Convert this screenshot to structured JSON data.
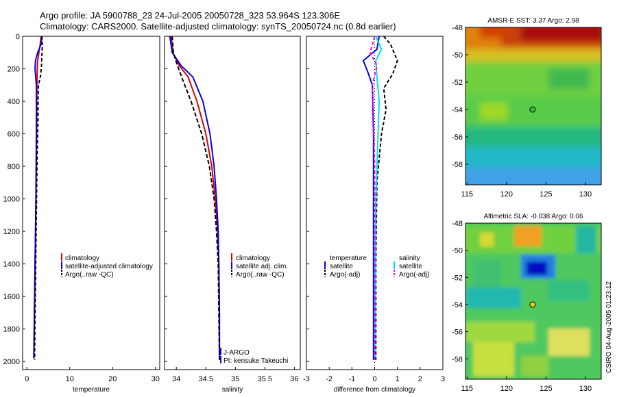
{
  "figure": {
    "title_line1": "Argo profile: JA 5900788_23 24-Jul-2005 20050728_323 53.964S 123.306E",
    "title_line2": "Climatology: CARS2000. Satellite-adjusted climatology: synTS_20050724.nc (0.8d earlier)",
    "side_label": "CSIRO 04-Aug-2005 01:23:12"
  },
  "colors": {
    "clim": "#e00000",
    "sat": "#0000ee",
    "argo": "#000000",
    "salt": "#00e0e0",
    "argo_s": "#ff00ff"
  },
  "chart_data": [
    {
      "type": "line",
      "id": "temperature",
      "xlabel": "temperature",
      "xlim": [
        -1,
        31
      ],
      "ylim": [
        2050,
        0
      ],
      "xticks": [
        0,
        10,
        20,
        30
      ],
      "yticks": [
        0,
        200,
        400,
        600,
        800,
        1000,
        1200,
        1400,
        1600,
        1800,
        2000
      ],
      "series": [
        {
          "name": "climatology",
          "color": "#e00000",
          "dash": "",
          "points": [
            [
              3.3,
              0
            ],
            [
              3.1,
              50
            ],
            [
              2.8,
              100
            ],
            [
              2.5,
              150
            ],
            [
              2.4,
              200
            ],
            [
              2.35,
              300
            ],
            [
              2.3,
              400
            ],
            [
              2.25,
              600
            ],
            [
              2.2,
              800
            ],
            [
              2.1,
              1000
            ],
            [
              2.0,
              1200
            ],
            [
              1.9,
              1400
            ],
            [
              1.8,
              1600
            ],
            [
              1.7,
              1800
            ],
            [
              1.6,
              1980
            ]
          ]
        },
        {
          "name": "satellite-adjusted climatology",
          "color": "#0000ee",
          "dash": "",
          "points": [
            [
              3.5,
              0
            ],
            [
              3.3,
              50
            ],
            [
              2.5,
              100
            ],
            [
              2.0,
              150
            ],
            [
              1.9,
              200
            ],
            [
              2.2,
              300
            ],
            [
              2.2,
              400
            ],
            [
              2.2,
              600
            ],
            [
              2.15,
              800
            ],
            [
              2.1,
              1000
            ],
            [
              2.0,
              1200
            ],
            [
              1.9,
              1400
            ],
            [
              1.8,
              1600
            ],
            [
              1.7,
              1800
            ],
            [
              1.6,
              1980
            ]
          ]
        },
        {
          "name": "Argo(..raw -QC)",
          "color": "#000000",
          "dash": "5,3",
          "points": [
            [
              3.5,
              0
            ],
            [
              3.6,
              60
            ],
            [
              3.5,
              120
            ],
            [
              3.4,
              180
            ],
            [
              3.2,
              240
            ],
            [
              2.7,
              300
            ],
            [
              2.6,
              400
            ],
            [
              2.6,
              500
            ],
            [
              2.4,
              700
            ],
            [
              2.3,
              900
            ],
            [
              2.2,
              1100
            ],
            [
              2.1,
              1300
            ],
            [
              2.0,
              1500
            ],
            [
              1.9,
              1700
            ],
            [
              1.8,
              1990
            ]
          ]
        }
      ],
      "legend": [
        "climatology",
        "satellite-adjusted climatology",
        "Argo(..raw -QC)"
      ]
    },
    {
      "type": "line",
      "id": "salinity",
      "xlabel": "salinity",
      "xlim": [
        33.8,
        36.1
      ],
      "ylim": [
        2050,
        0
      ],
      "xticks": [
        34,
        34.5,
        35,
        35.5,
        36
      ],
      "tick_labels": [
        "34",
        "34.5",
        "35",
        "35.5",
        "36"
      ],
      "series": [
        {
          "name": "climatology",
          "color": "#e00000",
          "dash": "",
          "points": [
            [
              33.91,
              0
            ],
            [
              33.94,
              100
            ],
            [
              34.05,
              180
            ],
            [
              34.2,
              250
            ],
            [
              34.35,
              400
            ],
            [
              34.5,
              600
            ],
            [
              34.6,
              800
            ],
            [
              34.66,
              1000
            ],
            [
              34.7,
              1200
            ],
            [
              34.72,
              1400
            ],
            [
              34.73,
              1700
            ],
            [
              34.73,
              1990
            ]
          ]
        },
        {
          "name": "satellite adj. clim.",
          "color": "#0000ee",
          "dash": "",
          "points": [
            [
              33.89,
              0
            ],
            [
              33.93,
              100
            ],
            [
              34.08,
              180
            ],
            [
              34.28,
              250
            ],
            [
              34.45,
              400
            ],
            [
              34.57,
              600
            ],
            [
              34.64,
              800
            ],
            [
              34.68,
              1000
            ],
            [
              34.71,
              1200
            ],
            [
              34.72,
              1400
            ],
            [
              34.73,
              1700
            ],
            [
              34.73,
              1990
            ]
          ]
        },
        {
          "name": "Argo(..raw -QC)",
          "color": "#000000",
          "dash": "6,3",
          "points": [
            [
              33.93,
              0
            ],
            [
              33.95,
              100
            ],
            [
              34.0,
              160
            ],
            [
              34.1,
              260
            ],
            [
              34.25,
              400
            ],
            [
              34.43,
              600
            ],
            [
              34.56,
              800
            ],
            [
              34.64,
              1000
            ],
            [
              34.68,
              1200
            ],
            [
              34.71,
              1400
            ],
            [
              34.72,
              1700
            ],
            [
              34.73,
              1990
            ]
          ]
        }
      ],
      "legend": [
        "climatology",
        "satellite adj. clim.",
        "Argo(..raw -QC)"
      ],
      "credit": [
        "J-ARGO",
        "PI: kensuke Takeuchi"
      ]
    },
    {
      "type": "line",
      "id": "difference",
      "xlabel": "difference from climatology",
      "xlim": [
        -3,
        3
      ],
      "ylim": [
        2050,
        0
      ],
      "xticks": [
        -3,
        -2,
        -1,
        0,
        1,
        2,
        3
      ],
      "series": [
        {
          "name": "temperature satellite",
          "color": "#0000ee",
          "dash": "",
          "points": [
            [
              0.2,
              0
            ],
            [
              0.1,
              80
            ],
            [
              -0.5,
              150
            ],
            [
              -0.3,
              220
            ],
            [
              -0.1,
              300
            ],
            [
              -0.05,
              600
            ],
            [
              -0.05,
              1000
            ],
            [
              -0.05,
              1400
            ],
            [
              -0.05,
              1990
            ]
          ]
        },
        {
          "name": "temperature Argo(-adj)",
          "color": "#000000",
          "dash": "5,3",
          "points": [
            [
              0.4,
              0
            ],
            [
              0.7,
              50
            ],
            [
              1.0,
              150
            ],
            [
              0.8,
              230
            ],
            [
              0.4,
              320
            ],
            [
              0.5,
              450
            ],
            [
              0.3,
              600
            ],
            [
              0.1,
              900
            ],
            [
              0.05,
              1400
            ],
            [
              0.05,
              1990
            ]
          ]
        },
        {
          "name": "salinity satellite",
          "color": "#00e0e0",
          "dash": "",
          "points": [
            [
              0.05,
              0
            ],
            [
              0.3,
              80
            ],
            [
              0.05,
              150
            ],
            [
              0.1,
              250
            ],
            [
              0.2,
              400
            ],
            [
              0.15,
              600
            ],
            [
              0.1,
              800
            ],
            [
              0.05,
              1000
            ],
            [
              0.02,
              1400
            ],
            [
              0.0,
              1990
            ]
          ]
        },
        {
          "name": "salinity Argo(-adj)",
          "color": "#ff00ff",
          "dash": "5,3",
          "points": [
            [
              0.0,
              0
            ],
            [
              -0.2,
              100
            ],
            [
              0.1,
              180
            ],
            [
              -0.1,
              300
            ],
            [
              -0.05,
              500
            ],
            [
              0.0,
              800
            ],
            [
              0.0,
              1000
            ],
            [
              0.0,
              1400
            ],
            [
              0.0,
              1990
            ]
          ]
        }
      ],
      "legend_temp": [
        "temperature",
        "satellite",
        "Argo(-adj)"
      ],
      "legend_sal": [
        "salinity",
        "satellite",
        "Argo(-adj)"
      ]
    },
    {
      "type": "heatmap",
      "id": "sst_map",
      "title": "AMSR-E SST: 3.37 Argo: 2.98",
      "xlim": [
        114.8,
        132
      ],
      "ylim": [
        -59.5,
        -48
      ],
      "xticks": [
        115,
        120,
        125,
        130
      ],
      "yticks": [
        -48,
        -50,
        -52,
        -54,
        -56,
        -58
      ],
      "marker": [
        123.3,
        -54.0
      ]
    },
    {
      "type": "heatmap",
      "id": "sla_map",
      "title": "Altimetric SLA: -0.038 Argo: 0.06",
      "xlim": [
        114.8,
        132
      ],
      "ylim": [
        -59.5,
        -48
      ],
      "xticks": [
        115,
        120,
        125,
        130
      ],
      "yticks": [
        -48,
        -50,
        -52,
        -54,
        -56,
        -58
      ],
      "marker": [
        123.3,
        -54.0
      ]
    }
  ]
}
